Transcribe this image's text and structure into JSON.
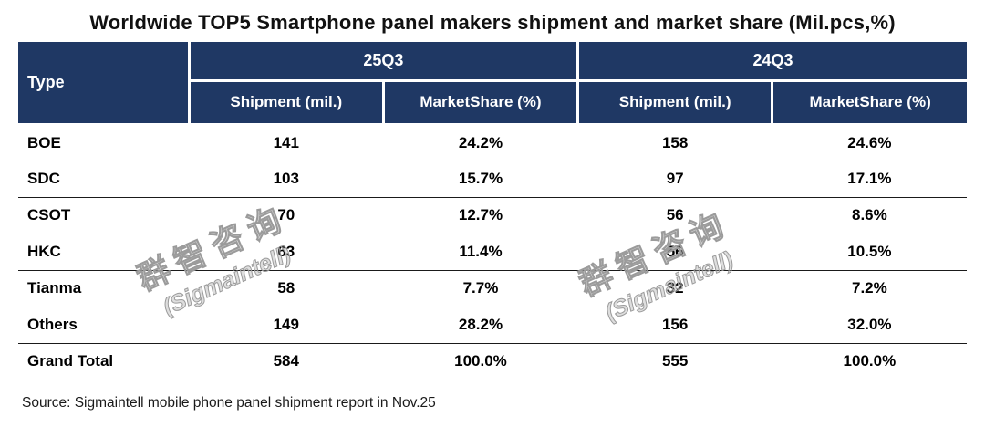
{
  "title": "Worldwide TOP5 Smartphone panel makers shipment and market share (Mil.pcs,%)",
  "table": {
    "type_header": "Type",
    "period_headers": [
      "25Q3",
      "24Q3"
    ],
    "sub_headers": [
      "Shipment (mil.)",
      "MarketShare (%)",
      "Shipment (mil.)",
      "MarketShare (%)"
    ],
    "rows": [
      {
        "type": "BOE",
        "values": [
          "141",
          "24.2%",
          "158",
          "24.6%"
        ]
      },
      {
        "type": "SDC",
        "values": [
          "103",
          "15.7%",
          "97",
          "17.1%"
        ]
      },
      {
        "type": "CSOT",
        "values": [
          "70",
          "12.7%",
          "56",
          "8.6%"
        ]
      },
      {
        "type": "HKC",
        "values": [
          "63",
          "11.4%",
          "56",
          "10.5%"
        ]
      },
      {
        "type": "Tianma",
        "values": [
          "58",
          "7.7%",
          "32",
          "7.2%"
        ]
      },
      {
        "type": "Others",
        "values": [
          "149",
          "28.2%",
          "156",
          "32.0%"
        ]
      },
      {
        "type": "Grand Total",
        "values": [
          "584",
          "100.0%",
          "555",
          "100.0%"
        ]
      }
    ]
  },
  "source": "Source: Sigmaintell mobile phone panel shipment report in Nov.25",
  "watermark": {
    "cn": "群智咨询",
    "en": "(Sigmaintell)"
  },
  "colors": {
    "header_bg": "#1F3864",
    "header_text": "#FFFFFF",
    "body_text": "#000000",
    "watermark_gray": "#9B9B9B"
  },
  "chart_data": {
    "type": "table",
    "title": "Worldwide TOP5 Smartphone panel makers shipment and market share (Mil.pcs,%)",
    "columns": [
      "Type",
      "25Q3 Shipment (mil.)",
      "25Q3 MarketShare (%)",
      "24Q3 Shipment (mil.)",
      "24Q3 MarketShare (%)"
    ],
    "rows": [
      [
        "BOE",
        141,
        "24.2%",
        158,
        "24.6%"
      ],
      [
        "SDC",
        103,
        "15.7%",
        97,
        "17.1%"
      ],
      [
        "CSOT",
        70,
        "12.7%",
        56,
        "8.6%"
      ],
      [
        "HKC",
        63,
        "11.4%",
        56,
        "10.5%"
      ],
      [
        "Tianma",
        58,
        "7.7%",
        32,
        "7.2%"
      ],
      [
        "Others",
        149,
        "28.2%",
        156,
        "32.0%"
      ],
      [
        "Grand Total",
        584,
        "100.0%",
        555,
        "100.0%"
      ]
    ],
    "source": "Source: Sigmaintell mobile phone panel shipment report in Nov.25"
  }
}
